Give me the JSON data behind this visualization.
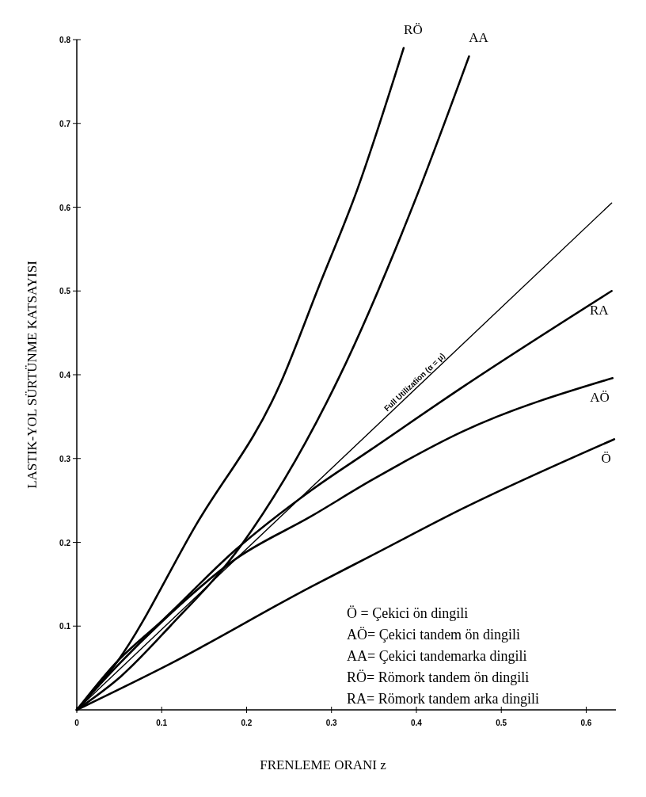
{
  "chart_data": {
    "type": "line",
    "xlabel": "FRENLEME ORANI z",
    "ylabel": "LASTIK-YOL SÜRTÜNME KATSAYISI",
    "xlim": [
      0,
      0.635
    ],
    "ylim": [
      0,
      0.8
    ],
    "xticks": [
      0,
      0.1,
      0.2,
      0.3,
      0.4,
      0.5,
      0.6
    ],
    "yticks": [
      0.1,
      0.2,
      0.3,
      0.4,
      0.5,
      0.6,
      0.7,
      0.8
    ],
    "grid": false,
    "marker": "none",
    "line_style": "solid",
    "series": [
      {
        "name": "RÖ",
        "color": "#000000",
        "x": [
          0,
          0.048,
          0.14,
          0.24,
          0.285,
          0.33,
          0.385
        ],
        "values": [
          0,
          0.058,
          0.22,
          0.39,
          0.505,
          0.62,
          0.79
        ]
      },
      {
        "name": "AA",
        "color": "#000000",
        "x": [
          0,
          0.052,
          0.11,
          0.194,
          0.309,
          0.398,
          0.462
        ],
        "values": [
          0,
          0.04,
          0.1,
          0.197,
          0.397,
          0.607,
          0.78
        ]
      },
      {
        "color": "#000000",
        "x": [
          0,
          0.63
        ],
        "values": [
          0,
          0.605
        ]
      },
      {
        "name": "RA",
        "color": "#000000",
        "x": [
          0,
          0.045,
          0.101,
          0.187,
          0.276,
          0.347,
          0.454,
          0.63
        ],
        "values": [
          0,
          0.055,
          0.107,
          0.191,
          0.262,
          0.311,
          0.385,
          0.5
        ]
      },
      {
        "name": "AÖ",
        "color": "#000000",
        "x": [
          0,
          0.05,
          0.1,
          0.187,
          0.276,
          0.347,
          0.454,
          0.631
        ],
        "values": [
          0,
          0.055,
          0.105,
          0.18,
          0.231,
          0.274,
          0.332,
          0.396
        ]
      },
      {
        "name": "Ö",
        "color": "#000000",
        "x": [
          0,
          0.11,
          0.276,
          0.347,
          0.454,
          0.633
        ],
        "values": [
          0,
          0.055,
          0.147,
          0.184,
          0.24,
          0.323
        ]
      }
    ],
    "annotations": [
      {
        "text": "Full Utilization (α = μ)",
        "x": 0.4,
        "y": 0.384
      },
      "Ö  = Çekici ön dingili",
      "AÖ= Çekici tandem ön dingili",
      "AA= Çekici tandemarka dingili",
      "RÖ= Römork tandem ön dingili",
      "RA= Römork tandem arka dingili"
    ]
  }
}
